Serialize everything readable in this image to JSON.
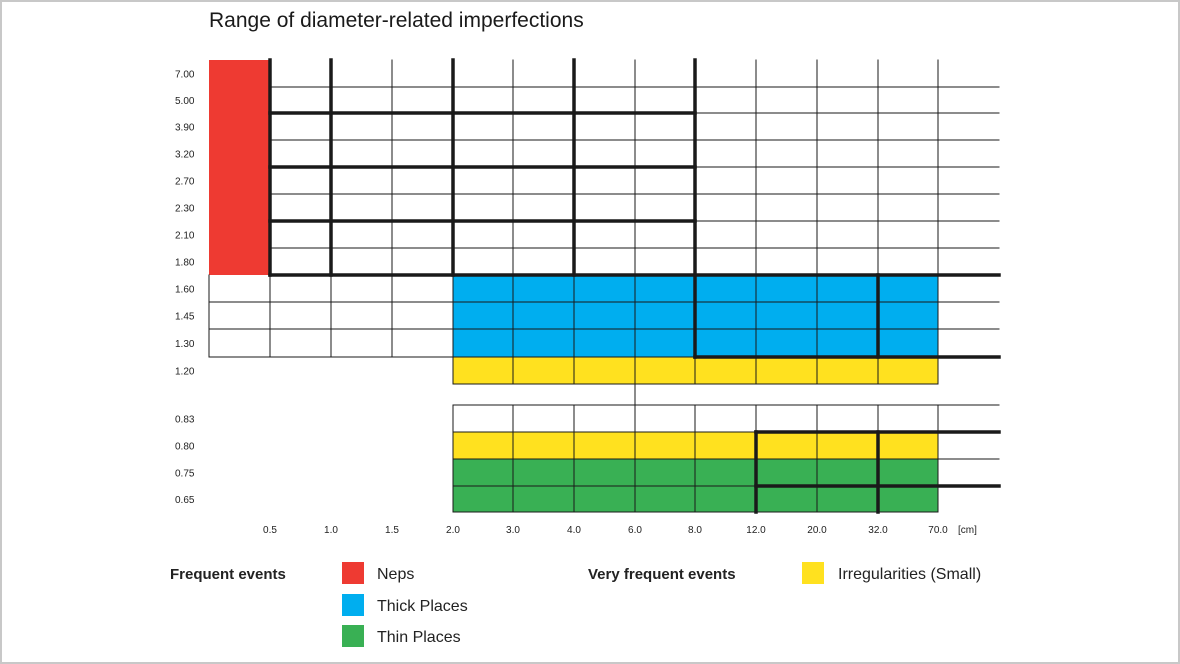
{
  "title": "Range of diameter-related imperfections",
  "colors": {
    "neps": "#EE3A32",
    "thick": "#00AEEF",
    "thin": "#39B054",
    "irregularities": "#FFE11F",
    "grid": "#1a1a1a"
  },
  "chart_data": {
    "type": "table",
    "title": "Range of diameter-related imperfections",
    "x_unit": "[cm]",
    "x_ticks": [
      "0.5",
      "1.0",
      "1.5",
      "2.0",
      "3.0",
      "4.0",
      "6.0",
      "8.0",
      "12.0",
      "20.0",
      "32.0",
      "70.0"
    ],
    "y_ticks": [
      "7.00",
      "5.00",
      "3.90",
      "3.20",
      "2.70",
      "2.30",
      "2.10",
      "1.80",
      "1.60",
      "1.45",
      "1.30",
      "1.20",
      "0.83",
      "0.80",
      "0.75",
      "0.65"
    ],
    "regions": [
      {
        "category": "Neps",
        "color": "neps",
        "length_cm": [
          "<0.5"
        ],
        "diameter_range": [
          1.8,
          7.0
        ]
      },
      {
        "category": "Thick Places",
        "color": "thick",
        "length_cm": [
          2.0,
          70.0
        ],
        "diameter_range": [
          1.3,
          1.8
        ]
      },
      {
        "category": "Irregularities (Small)",
        "color": "irregularities",
        "length_cm": [
          2.0,
          70.0
        ],
        "diameter_range": [
          1.2,
          1.3
        ]
      },
      {
        "category": "Irregularities (Small)",
        "color": "irregularities",
        "length_cm": [
          2.0,
          70.0
        ],
        "diameter_range": [
          0.8,
          0.83
        ]
      },
      {
        "category": "Thin Places",
        "color": "thin",
        "length_cm": [
          2.0,
          70.0
        ],
        "diameter_range": [
          0.65,
          0.8
        ]
      }
    ]
  },
  "legend": {
    "frequent_heading": "Frequent events",
    "very_frequent_heading": "Very frequent events",
    "items": [
      {
        "label": "Neps",
        "color": "neps"
      },
      {
        "label": "Thick Places",
        "color": "thick"
      },
      {
        "label": "Thin Places",
        "color": "thin"
      },
      {
        "label": "Irregularities (Small)",
        "color": "irregularities"
      }
    ]
  }
}
